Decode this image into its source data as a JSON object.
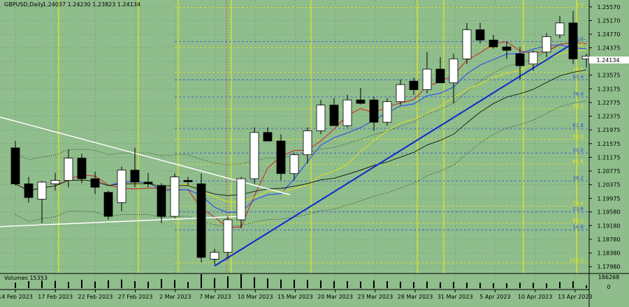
{
  "header": {
    "symbol": "GBPUSD,Daily",
    "ohlc": "1.24037 1.24230 1.23823 1.24134"
  },
  "volume_label": "Volumes 15353",
  "chart_data": {
    "type": "candlestick",
    "price_axis": {
      "ticks": [
        "1.25570",
        "1.25170",
        "1.24770",
        "1.24375",
        "1.23975",
        "1.23575",
        "1.23175",
        "1.22775",
        "1.22375",
        "1.21975",
        "1.21575",
        "1.21175",
        "1.20775",
        "1.20375",
        "1.19975",
        "1.19580",
        "1.19180",
        "1.18780",
        "1.18380",
        "1.17980"
      ],
      "current_price": "1.24134",
      "ylim": [
        1.1778,
        1.2577
      ]
    },
    "volume_axis": {
      "ticks": [
        "186268",
        "0"
      ]
    },
    "date_axis": [
      "14 Feb 2023",
      "17 Feb 2023",
      "22 Feb 2023",
      "27 Feb 2023",
      "2 Mar 2023",
      "7 Mar 2023",
      "10 Mar 2023",
      "15 Mar 2023",
      "20 Mar 2023",
      "23 Mar 2023",
      "28 Mar 2023",
      "31 Mar 2023",
      "5 Apr 2023",
      "10 Apr 2023",
      "13 Apr 2023"
    ],
    "candles": [
      {
        "o": 1.2145,
        "h": 1.2165,
        "l": 1.2035,
        "c": 1.204
      },
      {
        "o": 1.204,
        "h": 1.206,
        "l": 1.1985,
        "c": 1.2
      },
      {
        "o": 1.1995,
        "h": 1.2048,
        "l": 1.1925,
        "c": 1.2045
      },
      {
        "o": 1.204,
        "h": 1.2072,
        "l": 1.202,
        "c": 1.205
      },
      {
        "o": 1.205,
        "h": 1.214,
        "l": 1.203,
        "c": 1.2115
      },
      {
        "o": 1.2115,
        "h": 1.2128,
        "l": 1.2042,
        "c": 1.2055
      },
      {
        "o": 1.2055,
        "h": 1.2075,
        "l": 1.201,
        "c": 1.203
      },
      {
        "o": 1.2015,
        "h": 1.202,
        "l": 1.1935,
        "c": 1.1945
      },
      {
        "o": 1.1985,
        "h": 1.209,
        "l": 1.196,
        "c": 1.208
      },
      {
        "o": 1.208,
        "h": 1.2145,
        "l": 1.203,
        "c": 1.2045
      },
      {
        "o": 1.2045,
        "h": 1.2072,
        "l": 1.203,
        "c": 1.204
      },
      {
        "o": 1.2035,
        "h": 1.2042,
        "l": 1.1925,
        "c": 1.1945
      },
      {
        "o": 1.1945,
        "h": 1.207,
        "l": 1.194,
        "c": 1.206
      },
      {
        "o": 1.205,
        "h": 1.206,
        "l": 1.2036,
        "c": 1.2046
      },
      {
        "o": 1.204,
        "h": 1.207,
        "l": 1.181,
        "c": 1.1825
      },
      {
        "o": 1.182,
        "h": 1.185,
        "l": 1.1803,
        "c": 1.184
      },
      {
        "o": 1.184,
        "h": 1.1945,
        "l": 1.182,
        "c": 1.1935
      },
      {
        "o": 1.1935,
        "h": 1.206,
        "l": 1.191,
        "c": 1.2055
      },
      {
        "o": 1.2055,
        "h": 1.2205,
        "l": 1.204,
        "c": 1.219
      },
      {
        "o": 1.219,
        "h": 1.2205,
        "l": 1.2165,
        "c": 1.2165
      },
      {
        "o": 1.2165,
        "h": 1.2185,
        "l": 1.205,
        "c": 1.207
      },
      {
        "o": 1.207,
        "h": 1.213,
        "l": 1.205,
        "c": 1.2125
      },
      {
        "o": 1.2125,
        "h": 1.2205,
        "l": 1.21,
        "c": 1.2195
      },
      {
        "o": 1.2195,
        "h": 1.2285,
        "l": 1.2185,
        "c": 1.227
      },
      {
        "o": 1.227,
        "h": 1.229,
        "l": 1.221,
        "c": 1.221
      },
      {
        "o": 1.221,
        "h": 1.23,
        "l": 1.2205,
        "c": 1.2285
      },
      {
        "o": 1.2285,
        "h": 1.232,
        "l": 1.2272,
        "c": 1.2275
      },
      {
        "o": 1.2285,
        "h": 1.2295,
        "l": 1.2195,
        "c": 1.222
      },
      {
        "o": 1.222,
        "h": 1.229,
        "l": 1.221,
        "c": 1.228
      },
      {
        "o": 1.228,
        "h": 1.2345,
        "l": 1.227,
        "c": 1.233
      },
      {
        "o": 1.234,
        "h": 1.235,
        "l": 1.23,
        "c": 1.2315
      },
      {
        "o": 1.2315,
        "h": 1.2425,
        "l": 1.2305,
        "c": 1.2375
      },
      {
        "o": 1.2375,
        "h": 1.241,
        "l": 1.2335,
        "c": 1.2335
      },
      {
        "o": 1.2335,
        "h": 1.242,
        "l": 1.2275,
        "c": 1.2405
      },
      {
        "o": 1.2405,
        "h": 1.251,
        "l": 1.239,
        "c": 1.249
      },
      {
        "o": 1.249,
        "h": 1.251,
        "l": 1.245,
        "c": 1.246
      },
      {
        "o": 1.246,
        "h": 1.2475,
        "l": 1.2435,
        "c": 1.244
      },
      {
        "o": 1.244,
        "h": 1.2455,
        "l": 1.2405,
        "c": 1.243
      },
      {
        "o": 1.242,
        "h": 1.244,
        "l": 1.2345,
        "c": 1.2385
      },
      {
        "o": 1.239,
        "h": 1.243,
        "l": 1.237,
        "c": 1.2425
      },
      {
        "o": 1.2425,
        "h": 1.248,
        "l": 1.241,
        "c": 1.247
      },
      {
        "o": 1.2475,
        "h": 1.253,
        "l": 1.2465,
        "c": 1.251
      },
      {
        "o": 1.251,
        "h": 1.2545,
        "l": 1.239,
        "c": 1.2405
      },
      {
        "o": 1.2405,
        "h": 1.242,
        "l": 1.238,
        "c": 1.2413
      }
    ],
    "volumes": [
      40,
      50,
      55,
      52,
      45,
      60,
      48,
      57,
      62,
      50,
      46,
      65,
      58,
      44,
      100,
      72,
      85,
      100,
      78,
      70,
      62,
      60,
      58,
      55,
      52,
      50,
      48,
      55,
      50,
      46,
      44,
      48,
      42,
      45,
      40,
      38,
      36,
      35,
      40,
      38,
      35,
      45,
      50,
      20
    ],
    "fib_levels": [
      {
        "label": "0.0",
        "price": 1.2555,
        "color": "#e8e81a"
      },
      {
        "label": "100.0",
        "price": 1.2456,
        "color": "#3050e0"
      },
      {
        "label": "14.6",
        "price": 1.2438,
        "color": "#e8e81a"
      },
      {
        "label": "23.6",
        "price": 1.2366,
        "color": "#e8e81a"
      },
      {
        "label": "85.4",
        "price": 1.2344,
        "color": "#3050e0"
      },
      {
        "label": "76.4",
        "price": 1.2294,
        "color": "#3050e0"
      },
      {
        "label": "38.2",
        "price": 1.2259,
        "color": "#e8e81a"
      },
      {
        "label": "61.8",
        "price": 1.2202,
        "color": "#3050e0"
      },
      {
        "label": "50.0",
        "price": 1.217,
        "color": "#e8e81a"
      },
      {
        "label": "50.0",
        "price": 1.213,
        "color": "#3050e0"
      },
      {
        "label": "61.8",
        "price": 1.2097,
        "color": "#e8e81a"
      },
      {
        "label": "38.2",
        "price": 1.2048,
        "color": "#3050e0"
      },
      {
        "label": "76.4",
        "price": 1.1975,
        "color": "#e8e81a"
      },
      {
        "label": "23.6",
        "price": 1.1958,
        "color": "#3050e0"
      },
      {
        "label": "85.4",
        "price": 1.1925,
        "color": "#e8e81a"
      },
      {
        "label": "14.6",
        "price": 1.1905,
        "color": "#3050e0"
      },
      {
        "label": "100.0",
        "price": 1.1809,
        "color": "#e8e81a"
      }
    ],
    "grid": true,
    "colors": {
      "background": "#8fbd8c",
      "bull": "#ffffff",
      "bear": "#000000",
      "vline": "#e8e81a",
      "cyan": "#5ff0f0",
      "trend_blue": "#0a28d0",
      "ma_red": "#d02020",
      "ma_blue": "#2040ff",
      "ma_yellow": "#e0e020",
      "ma_black": "#000000"
    }
  }
}
